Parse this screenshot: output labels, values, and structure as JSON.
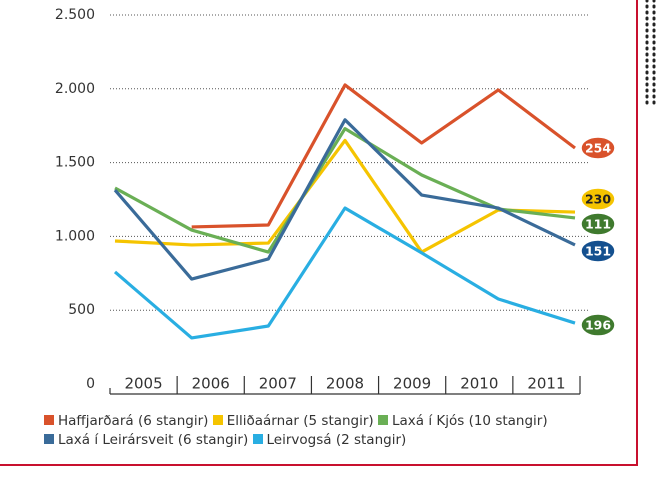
{
  "chart_data": {
    "type": "line",
    "categories": [
      "2005",
      "2006",
      "2007",
      "2008",
      "2009",
      "2010",
      "2011"
    ],
    "series": [
      {
        "name": "Haffjarðará (6 stangir)",
        "color": "#d9522b",
        "values": [
          null,
          1064,
          1077,
          2026,
          1633,
          1992,
          1599
        ],
        "end_label": "254",
        "end_label_color": "#d9522b"
      },
      {
        "name": "Elliðaárnar (5 stangir)",
        "color": "#f5c400",
        "values": [
          969,
          942,
          955,
          1650,
          894,
          1179,
          1165
        ],
        "end_label": "230",
        "end_label_color": "#f5c400"
      },
      {
        "name": "Laxá í Kjós (10 stangir)",
        "color": "#6aaf55",
        "values": [
          1328,
          1043,
          894,
          1730,
          1416,
          1186,
          1125
        ],
        "end_label": "111",
        "end_label_color": "#3f7a2e"
      },
      {
        "name": "Laxá í Leirársveit (6 stangir)",
        "color": "#3a6b99",
        "values": [
          1314,
          711,
          847,
          1790,
          1280,
          1192,
          942
        ],
        "end_label": "151",
        "end_label_color": "#14508f"
      },
      {
        "name": "Leirvogsá (2 stangir)",
        "color": "#29aee2",
        "values": [
          759,
          312,
          393,
          1192,
          888,
          576,
          413
        ],
        "end_label": "196",
        "end_label_color": "#3f7a2e"
      }
    ],
    "ylim": [
      0,
      2500
    ],
    "yticks": [
      {
        "value": 0,
        "label": "0"
      },
      {
        "value": 500,
        "label": "500"
      },
      {
        "value": 1000,
        "label": "1.000"
      },
      {
        "value": 1500,
        "label": "1.500"
      },
      {
        "value": 2000,
        "label": "2.000"
      },
      {
        "value": 2500,
        "label": "2.500"
      }
    ],
    "grid": true
  }
}
